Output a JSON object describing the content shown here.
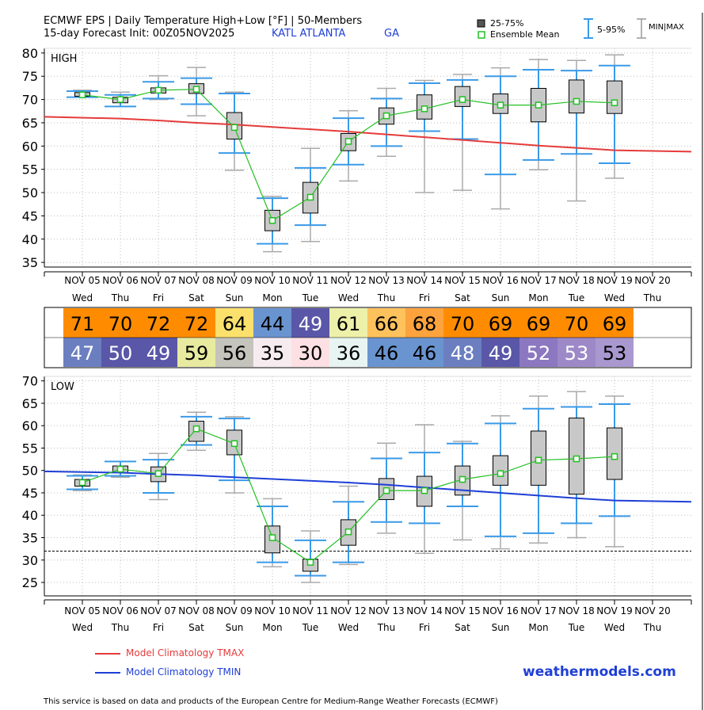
{
  "header": {
    "title_line1": "ECMWF EPS | Daily Temperature High+Low [°F] | 50-Members",
    "title_line2": "15-day Forecast Init: 00Z05NOV2025",
    "location": "KATL ATLANTA",
    "state": "GA"
  },
  "legend": {
    "box": "25-75%",
    "mean": "Ensemble Mean",
    "whisker": "5-95%",
    "minmax": "MIN|MAX"
  },
  "climatology": {
    "tmax_label": "Model Climatology TMAX",
    "tmin_label": "Model Climatology TMIN",
    "tmax_color": "#e53b3b",
    "tmin_color": "#1f3fd6"
  },
  "brand": "weathermodels.com",
  "footer": "This service is based on data and products of the European Centre for Medium-Range Weather Forecasts (ECMWF)",
  "chart_data": [
    {
      "type": "box",
      "panel_label": "HIGH",
      "categories": [
        "NOV 05",
        "NOV 06",
        "NOV 07",
        "NOV 08",
        "NOV 09",
        "NOV 10",
        "NOV 11",
        "NOV 12",
        "NOV 13",
        "NOV 14",
        "NOV 15",
        "NOV 16",
        "NOV 17",
        "NOV 18",
        "NOV 19",
        "NOV 20"
      ],
      "weekdays": [
        "Wed",
        "Thu",
        "Fri",
        "Sat",
        "Sun",
        "Mon",
        "Tue",
        "Wed",
        "Thu",
        "Fri",
        "Sat",
        "Sun",
        "Mon",
        "Tue",
        "Wed",
        "Thu"
      ],
      "ylim": [
        34,
        81
      ],
      "yticks": [
        35,
        40,
        45,
        50,
        55,
        60,
        65,
        70,
        75,
        80
      ],
      "series": [
        {
          "name": "Ensemble Mean",
          "values": [
            71,
            70,
            72,
            72.2,
            64,
            44,
            49,
            61,
            66.5,
            68,
            70,
            68.8,
            68.8,
            69.6,
            69.3
          ]
        },
        {
          "name": "25-75%",
          "q25": [
            70.7,
            69.3,
            71.4,
            71.3,
            61.5,
            41.8,
            45.6,
            59,
            64.7,
            65.8,
            68.5,
            67,
            65.2,
            67.1,
            67
          ],
          "q75": [
            71.5,
            70.5,
            72.5,
            73.4,
            67.2,
            46.2,
            52.2,
            62.7,
            68.2,
            71,
            72.8,
            71.2,
            72.4,
            74.2,
            74
          ]
        },
        {
          "name": "5-95%",
          "p5": [
            70.5,
            68.5,
            70.2,
            69,
            58.5,
            39,
            43,
            56,
            60,
            63.2,
            61.5,
            53.9,
            57,
            58.3,
            56.3
          ],
          "p95": [
            71.8,
            71,
            73.8,
            74.6,
            71.3,
            48.8,
            55.3,
            66,
            70.2,
            73.5,
            74.2,
            75,
            76.4,
            76.2,
            77.3
          ]
        },
        {
          "name": "MIN|MAX",
          "min": [
            70.5,
            68.5,
            70,
            66.5,
            54.8,
            37.3,
            39.5,
            52.5,
            57.8,
            50,
            50.5,
            46.5,
            54.9,
            48.2,
            53.1
          ],
          "max": [
            72,
            71.6,
            75.1,
            76.9,
            71.6,
            49.2,
            59.5,
            67.6,
            72.4,
            74.1,
            75.4,
            76.8,
            78.6,
            78.4,
            79.6
          ]
        },
        {
          "name": "Model Climatology TMAX",
          "values": [
            66.3,
            65.9,
            65.5,
            65,
            64.6,
            64.1,
            63.6,
            63.1,
            62.5,
            61.9,
            61.3,
            60.7,
            60.1,
            59.6,
            59.1,
            58.8
          ]
        }
      ]
    },
    {
      "type": "box",
      "panel_label": "LOW",
      "categories": [
        "NOV 05",
        "NOV 06",
        "NOV 07",
        "NOV 08",
        "NOV 09",
        "NOV 10",
        "NOV 11",
        "NOV 12",
        "NOV 13",
        "NOV 14",
        "NOV 15",
        "NOV 16",
        "NOV 17",
        "NOV 18",
        "NOV 19",
        "NOV 20"
      ],
      "weekdays": [
        "Wed",
        "Thu",
        "Fri",
        "Sat",
        "Sun",
        "Mon",
        "Tue",
        "Wed",
        "Thu",
        "Fri",
        "Sat",
        "Sun",
        "Mon",
        "Tue",
        "Wed",
        "Thu"
      ],
      "ylim": [
        22,
        71
      ],
      "yticks": [
        25,
        30,
        35,
        40,
        45,
        50,
        55,
        60,
        65,
        70
      ],
      "reference_line": 32,
      "series": [
        {
          "name": "Ensemble Mean",
          "values": [
            47.3,
            50.3,
            49.3,
            59.3,
            56,
            35,
            29.5,
            36.3,
            45.5,
            45.5,
            48,
            49.3,
            52.3,
            52.6,
            53.1
          ]
        },
        {
          "name": "25-75%",
          "q25": [
            46.5,
            49.5,
            47.5,
            56.5,
            53.5,
            31.6,
            27.5,
            33.3,
            43.5,
            42,
            44.5,
            46.7,
            46.7,
            44.7,
            48
          ],
          "q75": [
            48,
            51,
            50.8,
            61,
            59,
            37.6,
            30.2,
            39,
            48.2,
            48.7,
            51,
            53.3,
            58.8,
            61.7,
            59.5
          ]
        },
        {
          "name": "5-95%",
          "p5": [
            45.8,
            48.8,
            45,
            55.7,
            47.8,
            29.5,
            26.5,
            29.5,
            38.5,
            38.2,
            42,
            35.3,
            36,
            38.2,
            39.8
          ],
          "p95": [
            48.8,
            52,
            52.4,
            62,
            61.6,
            42,
            34.4,
            43,
            52.7,
            54,
            56,
            60.5,
            63.8,
            64.2,
            64.8
          ]
        },
        {
          "name": "MIN|MAX",
          "min": [
            45.5,
            48.5,
            43.5,
            54.5,
            45,
            28.5,
            25,
            29,
            36,
            31.5,
            34.5,
            32.5,
            33.8,
            35,
            33
          ],
          "max": [
            49,
            52,
            53.8,
            63,
            62,
            43.7,
            36.5,
            46.5,
            56.1,
            60.2,
            56.5,
            62.2,
            66.6,
            67.6,
            66.6
          ]
        },
        {
          "name": "Model Climatology TMIN",
          "values": [
            49.8,
            49.5,
            49.2,
            48.9,
            48.5,
            48.1,
            47.7,
            47.3,
            46.8,
            46.2,
            45.6,
            45,
            44.4,
            43.8,
            43.3,
            43
          ]
        }
      ]
    }
  ],
  "strip": {
    "high": [
      {
        "v": "71",
        "bg": "#ff8c00",
        "fg": "#000"
      },
      {
        "v": "70",
        "bg": "#ff8c00",
        "fg": "#000"
      },
      {
        "v": "72",
        "bg": "#ff8c00",
        "fg": "#000"
      },
      {
        "v": "72",
        "bg": "#ff8c00",
        "fg": "#000"
      },
      {
        "v": "64",
        "bg": "#fbe06c",
        "fg": "#000"
      },
      {
        "v": "44",
        "bg": "#6a94d0",
        "fg": "#000"
      },
      {
        "v": "49",
        "bg": "#5a57a8",
        "fg": "#fff"
      },
      {
        "v": "61",
        "bg": "#edf0a8",
        "fg": "#000"
      },
      {
        "v": "66",
        "bg": "#fdc25c",
        "fg": "#000"
      },
      {
        "v": "68",
        "bg": "#fca33d",
        "fg": "#000"
      },
      {
        "v": "70",
        "bg": "#ff8c00",
        "fg": "#000"
      },
      {
        "v": "69",
        "bg": "#ff8c00",
        "fg": "#000"
      },
      {
        "v": "69",
        "bg": "#ff8c00",
        "fg": "#000"
      },
      {
        "v": "70",
        "bg": "#ff8c00",
        "fg": "#000"
      },
      {
        "v": "69",
        "bg": "#ff8c00",
        "fg": "#000"
      }
    ],
    "low": [
      {
        "v": "47",
        "bg": "#6b7fc0",
        "fg": "#fff"
      },
      {
        "v": "50",
        "bg": "#5a57a8",
        "fg": "#fff"
      },
      {
        "v": "49",
        "bg": "#5a57a8",
        "fg": "#fff"
      },
      {
        "v": "59",
        "bg": "#e8eaa0",
        "fg": "#000"
      },
      {
        "v": "56",
        "bg": "#c4c4bc",
        "fg": "#000"
      },
      {
        "v": "35",
        "bg": "#f6ecf0",
        "fg": "#000"
      },
      {
        "v": "30",
        "bg": "#fde0e4",
        "fg": "#000"
      },
      {
        "v": "36",
        "bg": "#e8f4f2",
        "fg": "#000"
      },
      {
        "v": "46",
        "bg": "#6a94d0",
        "fg": "#000"
      },
      {
        "v": "46",
        "bg": "#6a94d0",
        "fg": "#000"
      },
      {
        "v": "48",
        "bg": "#6b7fc0",
        "fg": "#fff"
      },
      {
        "v": "49",
        "bg": "#5a57a8",
        "fg": "#fff"
      },
      {
        "v": "52",
        "bg": "#8c78c0",
        "fg": "#fff"
      },
      {
        "v": "53",
        "bg": "#9d88c8",
        "fg": "#fff"
      },
      {
        "v": "53",
        "bg": "#a898cf",
        "fg": "#000"
      }
    ]
  }
}
